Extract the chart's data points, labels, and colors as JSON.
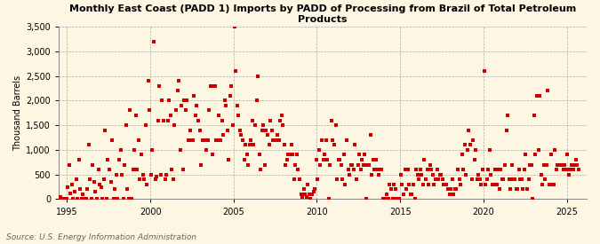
{
  "title": "Monthly East Coast (PADD 1) Imports by PADD of Processing from Brazil of Total Petroleum Products",
  "ylabel": "Thousand Barrels",
  "source_text": "Source: U.S. Energy Information Administration",
  "background_color": "#fdf6e3",
  "marker_color": "#cc0000",
  "xlim": [
    1994.5,
    2026.2
  ],
  "ylim": [
    0,
    3500
  ],
  "yticks": [
    0,
    500,
    1000,
    1500,
    2000,
    2500,
    3000,
    3500
  ],
  "ytick_labels": [
    "0",
    "500",
    "1,000",
    "1,500",
    "2,000",
    "2,500",
    "3,000",
    "3,500"
  ],
  "xticks": [
    1995,
    2000,
    2005,
    2010,
    2015,
    2020,
    2025
  ],
  "start_year": 1993,
  "start_month": 1,
  "data_y": [
    0,
    0,
    0,
    0,
    0,
    0,
    0,
    0,
    0,
    0,
    0,
    0,
    0,
    0,
    0,
    0,
    0,
    0,
    0,
    50,
    0,
    0,
    0,
    0,
    250,
    700,
    120,
    300,
    0,
    150,
    400,
    0,
    800,
    200,
    0,
    100,
    0,
    0,
    200,
    1100,
    400,
    0,
    700,
    350,
    150,
    0,
    600,
    300,
    250,
    0,
    400,
    1400,
    0,
    800,
    600,
    350,
    1200,
    0,
    200,
    500,
    0,
    800,
    1000,
    500,
    0,
    700,
    1500,
    200,
    0,
    1800,
    0,
    600,
    1000,
    1700,
    600,
    1200,
    400,
    900,
    500,
    400,
    1500,
    300,
    2400,
    1800,
    500,
    1000,
    3200,
    400,
    450,
    1600,
    2300,
    500,
    2000,
    1600,
    400,
    500,
    1600,
    2000,
    1700,
    600,
    400,
    1500,
    1800,
    2200,
    2400,
    1000,
    1900,
    600,
    2000,
    1800,
    2000,
    1200,
    1400,
    1200,
    1200,
    2100,
    1700,
    1900,
    1600,
    1400,
    700,
    1200,
    1200,
    1200,
    1000,
    1200,
    1800,
    2300,
    900,
    2300,
    2300,
    1200,
    1200,
    1700,
    1200,
    1600,
    1300,
    2000,
    1900,
    1400,
    800,
    2100,
    2300,
    1500,
    3500,
    2600,
    1900,
    1700,
    1400,
    1300,
    1200,
    800,
    1100,
    900,
    700,
    1100,
    1200,
    1600,
    1100,
    1500,
    2000,
    2500,
    900,
    600,
    1400,
    1500,
    700,
    1400,
    1300,
    1100,
    1600,
    1400,
    1200,
    1200,
    1200,
    1300,
    1200,
    1600,
    1700,
    1500,
    1100,
    700,
    800,
    900,
    900,
    1100,
    900,
    400,
    700,
    900,
    600,
    400,
    100,
    50,
    200,
    100,
    50,
    300,
    100,
    0,
    100,
    150,
    200,
    800,
    400,
    1000,
    700,
    1200,
    800,
    900,
    1200,
    800,
    0,
    700,
    1600,
    1200,
    1100,
    1500,
    400,
    800,
    800,
    700,
    400,
    900,
    300,
    1200,
    600,
    500,
    700,
    700,
    600,
    1100,
    400,
    700,
    900,
    600,
    800,
    700,
    900,
    0,
    700,
    700,
    1300,
    500,
    800,
    600,
    800,
    600,
    500,
    600,
    600,
    0,
    0,
    0,
    100,
    0,
    300,
    200,
    0,
    300,
    200,
    0,
    0,
    0,
    500,
    300,
    100,
    600,
    200,
    600,
    300,
    100,
    100,
    300,
    0,
    600,
    500,
    400,
    600,
    500,
    300,
    800,
    400,
    600,
    300,
    700,
    600,
    500,
    300,
    400,
    600,
    400,
    500,
    500,
    400,
    300,
    300,
    300,
    200,
    100,
    200,
    400,
    100,
    200,
    200,
    600,
    400,
    300,
    900,
    600,
    1100,
    500,
    1000,
    1400,
    1100,
    400,
    1200,
    800,
    1000,
    400,
    500,
    400,
    300,
    600,
    2600,
    300,
    400,
    600,
    1000,
    500,
    300,
    300,
    600,
    300,
    600,
    200,
    600,
    400,
    400,
    700,
    1400,
    1700,
    400,
    200,
    700,
    400,
    400,
    200,
    200,
    600,
    400,
    400,
    200,
    600,
    900,
    200,
    400,
    700,
    700,
    0,
    1700,
    900,
    2100,
    1000,
    2100,
    500,
    300,
    700,
    400,
    700,
    2200,
    300,
    900,
    300,
    300,
    1000,
    600,
    700,
    700,
    700,
    700,
    600,
    700,
    600,
    900,
    500,
    600,
    700,
    600,
    700,
    800,
    700,
    600
  ]
}
